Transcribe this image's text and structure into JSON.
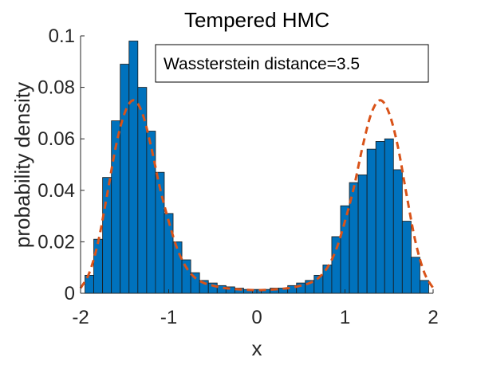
{
  "chart_data": {
    "type": "bar",
    "title": "Tempered HMC",
    "xlabel": "x",
    "ylabel": "probability density",
    "xlim": [
      -2,
      2
    ],
    "ylim": [
      0,
      0.1
    ],
    "xticks": [
      "-2",
      "-1",
      "0",
      "1",
      "2"
    ],
    "yticks": [
      "0",
      "0.02",
      "0.04",
      "0.06",
      "0.08",
      "0.1"
    ],
    "annotation": "Wassterstein distance=3.5",
    "grid": false,
    "colors": {
      "bars": "#0072BD",
      "density": "#D95319"
    },
    "bin_width": 0.1,
    "x": [
      -1.9,
      -1.8,
      -1.7,
      -1.6,
      -1.5,
      -1.4,
      -1.3,
      -1.2,
      -1.1,
      -1.0,
      -0.9,
      -0.8,
      -0.7,
      -0.6,
      -0.5,
      -0.4,
      -0.3,
      -0.2,
      -0.1,
      0.0,
      0.1,
      0.2,
      0.3,
      0.4,
      0.5,
      0.6,
      0.7,
      0.8,
      0.9,
      1.0,
      1.1,
      1.2,
      1.3,
      1.4,
      1.5,
      1.6,
      1.7,
      1.8,
      1.9
    ],
    "values": [
      0.007,
      0.021,
      0.045,
      0.067,
      0.089,
      0.098,
      0.08,
      0.063,
      0.047,
      0.031,
      0.02,
      0.013,
      0.008,
      0.005,
      0.004,
      0.003,
      0.0025,
      0.002,
      0.0015,
      0.0015,
      0.0015,
      0.002,
      0.002,
      0.003,
      0.004,
      0.005,
      0.007,
      0.011,
      0.022,
      0.034,
      0.043,
      0.046,
      0.056,
      0.059,
      0.06,
      0.048,
      0.028,
      0.014,
      0.005
    ],
    "density_curve": {
      "style": "dashed",
      "x": [
        -2.0,
        -1.9,
        -1.8,
        -1.7,
        -1.6,
        -1.5,
        -1.4,
        -1.3,
        -1.2,
        -1.1,
        -1.0,
        -0.9,
        -0.8,
        -0.7,
        -0.6,
        -0.5,
        -0.4,
        -0.3,
        -0.2,
        -0.1,
        0.0,
        0.1,
        0.2,
        0.3,
        0.4,
        0.5,
        0.6,
        0.7,
        0.8,
        0.9,
        1.0,
        1.1,
        1.2,
        1.3,
        1.4,
        1.5,
        1.6,
        1.7,
        1.8,
        1.9,
        2.0
      ],
      "y": [
        0.002,
        0.008,
        0.02,
        0.038,
        0.057,
        0.07,
        0.075,
        0.07,
        0.057,
        0.041,
        0.028,
        0.017,
        0.01,
        0.006,
        0.004,
        0.003,
        0.0022,
        0.0018,
        0.0015,
        0.0013,
        0.0012,
        0.0013,
        0.0015,
        0.0018,
        0.0022,
        0.003,
        0.004,
        0.006,
        0.01,
        0.017,
        0.028,
        0.041,
        0.057,
        0.07,
        0.075,
        0.07,
        0.057,
        0.038,
        0.02,
        0.008,
        0.002
      ]
    }
  }
}
